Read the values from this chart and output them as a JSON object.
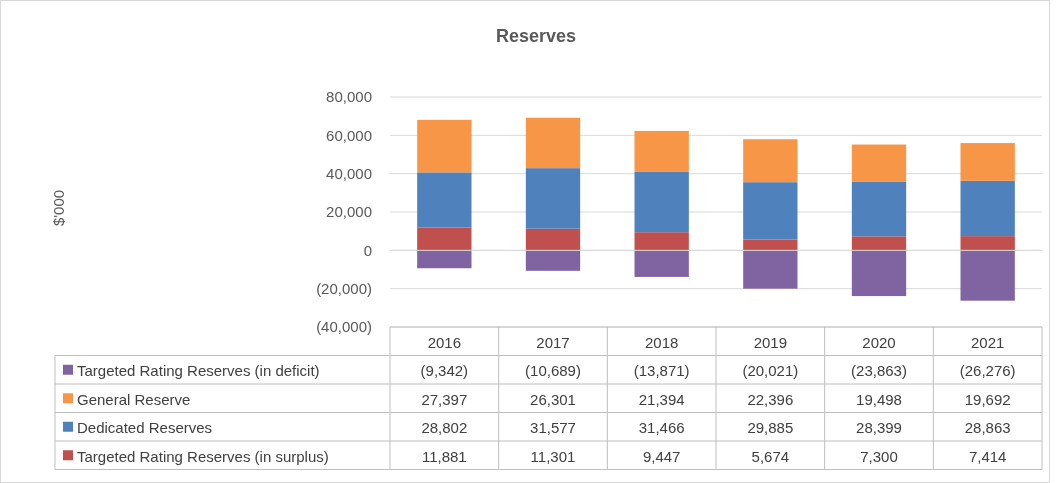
{
  "chart_data": {
    "type": "bar",
    "title": "Reserves",
    "annotations": [
      "$'000"
    ],
    "stacked": true,
    "categories": [
      "2016",
      "2017",
      "2018",
      "2019",
      "2020",
      "2021"
    ],
    "series": [
      {
        "name": "Targeted Rating Reserves (in surplus)",
        "color": "#c0504d",
        "values": [
          11881,
          11301,
          9447,
          5674,
          7300,
          7414
        ],
        "value_labels": [
          "11,881",
          "11,301",
          "9,447",
          "5,674",
          "7,300",
          "7,414"
        ]
      },
      {
        "name": "Dedicated Reserves",
        "color": "#4f81bd",
        "values": [
          28802,
          31577,
          31466,
          29885,
          28399,
          28863
        ],
        "value_labels": [
          "28,802",
          "31,577",
          "31,466",
          "29,885",
          "28,399",
          "28,863"
        ]
      },
      {
        "name": "General Reserve",
        "color": "#f79646",
        "values": [
          27397,
          26301,
          21394,
          22396,
          19498,
          19692
        ],
        "value_labels": [
          "27,397",
          "26,301",
          "21,394",
          "22,396",
          "19,498",
          "19,692"
        ]
      },
      {
        "name": "Targeted Rating Reserves (in deficit)",
        "color": "#8064a2",
        "values": [
          -9342,
          -10689,
          -13871,
          -20021,
          -23863,
          -26276
        ],
        "value_labels": [
          "(9,342)",
          "(10,689)",
          "(13,871)",
          "(20,021)",
          "(23,863)",
          "(26,276)"
        ]
      }
    ],
    "ylim": [
      -40000,
      80000
    ],
    "yticks": [
      {
        "value": -40000,
        "label": "(40,000)"
      },
      {
        "value": -20000,
        "label": "(20,000)"
      },
      0,
      {
        "value": 20000,
        "label": "20,000"
      },
      {
        "value": 40000,
        "label": "40,000"
      },
      {
        "value": 60000,
        "label": "60,000"
      },
      {
        "value": 80000,
        "label": "80,000"
      }
    ],
    "grid": "y",
    "legend": "bottom"
  }
}
